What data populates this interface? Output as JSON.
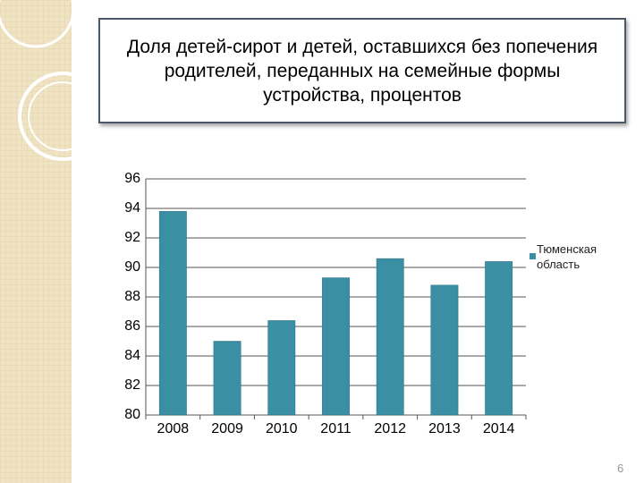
{
  "chart_data": {
    "type": "bar",
    "title": "Доля детей-сирот и детей, оставшихся без попечения родителей, переданных на семейные формы устройства, процентов",
    "categories": [
      "2008",
      "2009",
      "2010",
      "2011",
      "2012",
      "2013",
      "2014"
    ],
    "series": [
      {
        "name": "Тюменская область",
        "color": "#3a8fa4",
        "values": [
          93.8,
          85.0,
          86.4,
          89.3,
          90.6,
          88.8,
          90.4
        ]
      }
    ],
    "ylim": [
      80,
      96
    ],
    "yticks": [
      80,
      82,
      84,
      86,
      88,
      90,
      92,
      94,
      96
    ],
    "grid": true,
    "legend": "right"
  },
  "slide_number": "6"
}
